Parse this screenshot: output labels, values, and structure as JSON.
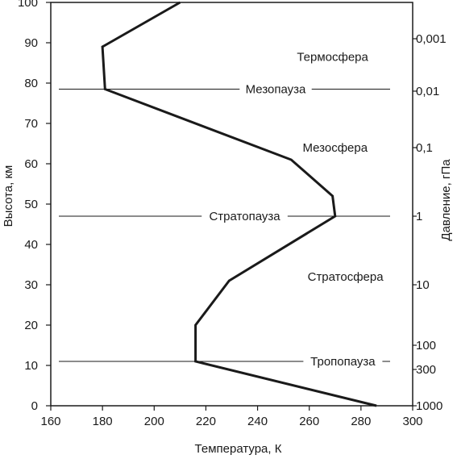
{
  "chart_data": {
    "type": "line",
    "xlabel": "Температура, К",
    "ylabel": "Высота, км",
    "y2label": "Давление, гПа",
    "xlim": [
      160,
      300
    ],
    "ylim": [
      0,
      100
    ],
    "x_ticks": [
      "160",
      "180",
      "200",
      "220",
      "240",
      "260",
      "280",
      "300"
    ],
    "y_ticks": [
      "0",
      "10",
      "20",
      "30",
      "40",
      "50",
      "60",
      "70",
      "80",
      "90",
      "100"
    ],
    "pressure_ticks": [
      {
        "label": "0,001",
        "altitude": 91
      },
      {
        "label": "0,01",
        "altitude": 78
      },
      {
        "label": "0,1",
        "altitude": 64
      },
      {
        "label": "1",
        "altitude": 47
      },
      {
        "label": "10",
        "altitude": 30
      },
      {
        "label": "100",
        "altitude": 15
      },
      {
        "label": "300",
        "altitude": 9
      },
      {
        "label": "1000",
        "altitude": 0
      }
    ],
    "series": [
      {
        "x": [
          286,
          216,
          216,
          229,
          270,
          269,
          253,
          181,
          180,
          210
        ],
        "y": [
          0,
          11,
          20,
          31,
          47,
          52,
          61,
          78.5,
          89,
          100
        ]
      }
    ],
    "boundaries": [
      {
        "label": "Мезопауза",
        "altitude": 78.5,
        "label_x": 247
      },
      {
        "label": "Стратопауза",
        "altitude": 47,
        "label_x": 235
      },
      {
        "label": "Тропопауза",
        "altitude": 11,
        "label_x": 273
      }
    ],
    "layers": [
      {
        "label": "Термосфера",
        "altitude": 86.5,
        "label_x": 269
      },
      {
        "label": "Мезосфера",
        "altitude": 64,
        "label_x": 270
      },
      {
        "label": "Стратосфера",
        "altitude": 32,
        "label_x": 274
      }
    ]
  }
}
